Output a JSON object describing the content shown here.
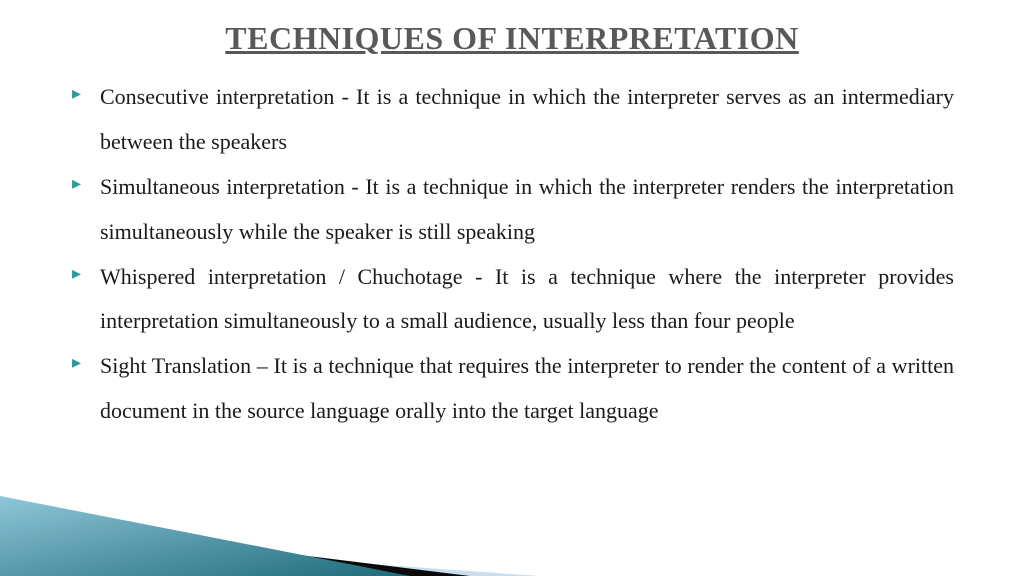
{
  "title": "TECHNIQUES OF INTERPRETATION",
  "title_color": "#595959",
  "body_color": "#1a1a1a",
  "bullet_color": "#2e9999",
  "title_fontsize": 32,
  "body_fontsize": 22,
  "line_height": 2.04,
  "bullets": [
    "Consecutive interpretation - It is a technique in which the interpreter serves as an intermediary between the speakers",
    "Simultaneous interpretation - It is a technique in which the interpreter renders the interpretation simultaneously while the speaker is still speaking",
    "Whispered interpretation / Chuchotage - It is a technique where the interpreter provides interpretation simultaneously to a small audience, usually less than four people",
    " Sight Translation – It is a technique that requires the interpreter to render the content of a written document in the source language orally into the target language"
  ],
  "decor": {
    "teal_dark": "#1f6b7a",
    "teal_light": "#8fc7d9",
    "blue_pale": "#c9dfed",
    "black": "#0a0a0a"
  }
}
